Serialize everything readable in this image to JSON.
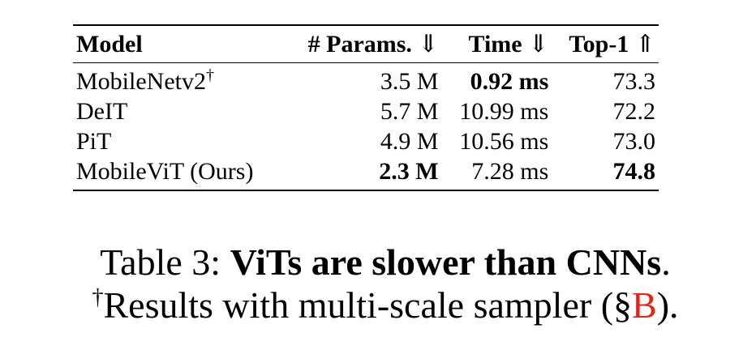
{
  "table": {
    "headers": [
      {
        "label": "Model",
        "arrow": ""
      },
      {
        "label": "# Params.",
        "arrow": "⇓"
      },
      {
        "label": "Time",
        "arrow": "⇓"
      },
      {
        "label": "Top-1",
        "arrow": "⇑"
      }
    ],
    "rows": [
      {
        "model": "MobileNetv2",
        "dagger": "†",
        "params": "3.5 M",
        "time": "0.92 ms",
        "top1": "73.3"
      },
      {
        "model": "DeIT",
        "dagger": "",
        "params": "5.7 M",
        "time": "10.99 ms",
        "top1": "72.2"
      },
      {
        "model": "PiT",
        "dagger": "",
        "params": "4.9 M",
        "time": "10.56 ms",
        "top1": "73.0"
      },
      {
        "model": "MobileViT (Ours)",
        "dagger": "",
        "params": "2.3 M",
        "time": "7.28 ms",
        "top1": "74.8"
      }
    ]
  },
  "caption": {
    "prefix": "Table 3: ",
    "bold": "ViTs are slower than CNNs",
    "period": ".",
    "dagger": "†",
    "line2_text": "Results with multi-scale sampler (§",
    "ref": "B",
    "line2_end": ")."
  },
  "colors": {
    "ref_link": "#e0251b"
  }
}
